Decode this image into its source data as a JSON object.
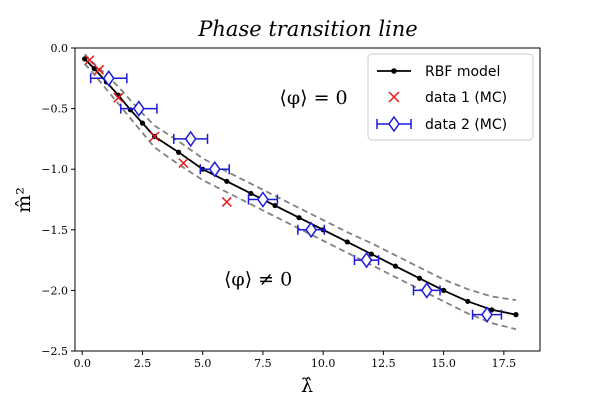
{
  "chart_data": {
    "type": "line",
    "title": "Phase transition line",
    "xlabel": "λ̂",
    "ylabel": "m̂²",
    "xlim": [
      -0.3,
      19.0
    ],
    "ylim": [
      -2.5,
      0.0
    ],
    "xticks": [
      0.0,
      2.5,
      5.0,
      7.5,
      10.0,
      12.5,
      15.0,
      17.5
    ],
    "xtick_labels": [
      "0.0",
      "2.5",
      "5.0",
      "7.5",
      "10.0",
      "12.5",
      "15.0",
      "17.5"
    ],
    "yticks": [
      0.0,
      -0.5,
      -1.0,
      -1.5,
      -2.0,
      -2.5
    ],
    "ytick_labels": [
      "0.0",
      "−0.5",
      "−1.0",
      "−1.5",
      "−2.0",
      "−2.5"
    ],
    "grid": false,
    "legend_position": "top-right",
    "annotations": [
      {
        "text": "⟨φ⟩ = 0",
        "x": 9.6,
        "y": -0.46
      },
      {
        "text": "⟨φ⟩ ≠ 0",
        "x": 7.3,
        "y": -1.96
      }
    ],
    "series": [
      {
        "name": "RBF model",
        "kind": "line-marker",
        "color": "#000000",
        "x": [
          0.1,
          0.5,
          1.0,
          1.5,
          2.0,
          2.5,
          3.0,
          4.0,
          5.0,
          6.0,
          7.0,
          8.0,
          9.0,
          10.0,
          11.0,
          12.0,
          13.0,
          14.0,
          15.0,
          16.0,
          17.0,
          18.0
        ],
        "y": [
          -0.09,
          -0.17,
          -0.28,
          -0.39,
          -0.51,
          -0.62,
          -0.73,
          -0.86,
          -1.0,
          -1.1,
          -1.2,
          -1.3,
          -1.4,
          -1.5,
          -1.6,
          -1.7,
          -1.8,
          -1.9,
          -2.0,
          -2.09,
          -2.16,
          -2.2
        ]
      },
      {
        "name": "upper band",
        "kind": "dashed",
        "color": "#808080",
        "x": [
          0.1,
          0.5,
          1.0,
          1.5,
          2.0,
          2.5,
          3.0,
          4.0,
          5.0,
          6.0,
          7.0,
          8.0,
          9.0,
          10.0,
          11.0,
          12.0,
          13.0,
          14.0,
          15.0,
          16.0,
          17.0,
          18.0
        ],
        "y": [
          -0.05,
          -0.13,
          -0.22,
          -0.32,
          -0.43,
          -0.54,
          -0.64,
          -0.77,
          -0.91,
          -1.02,
          -1.12,
          -1.22,
          -1.32,
          -1.42,
          -1.52,
          -1.61,
          -1.71,
          -1.81,
          -1.91,
          -1.99,
          -2.05,
          -2.08
        ]
      },
      {
        "name": "lower band",
        "kind": "dashed",
        "color": "#808080",
        "x": [
          0.1,
          0.5,
          1.0,
          1.5,
          2.0,
          2.5,
          3.0,
          4.0,
          5.0,
          6.0,
          7.0,
          8.0,
          9.0,
          10.0,
          11.0,
          12.0,
          13.0,
          14.0,
          15.0,
          16.0,
          17.0,
          18.0
        ],
        "y": [
          -0.13,
          -0.22,
          -0.34,
          -0.46,
          -0.58,
          -0.7,
          -0.82,
          -0.96,
          -1.09,
          -1.19,
          -1.29,
          -1.39,
          -1.49,
          -1.59,
          -1.69,
          -1.79,
          -1.89,
          -1.99,
          -2.09,
          -2.19,
          -2.27,
          -2.32
        ]
      },
      {
        "name": "data 1 (MC)",
        "kind": "x-marker",
        "color": "#e8191d",
        "x": [
          0.3,
          0.7,
          1.5,
          3.0,
          4.2,
          6.0
        ],
        "y": [
          -0.1,
          -0.18,
          -0.41,
          -0.73,
          -0.95,
          -1.27
        ]
      },
      {
        "name": "data 2 (MC)",
        "kind": "diamond-errorbar",
        "color": "#1a1adb",
        "x": [
          1.1,
          2.35,
          4.5,
          5.5,
          7.5,
          9.5,
          11.8,
          14.3,
          16.8
        ],
        "y": [
          -0.25,
          -0.5,
          -0.75,
          -1.0,
          -1.25,
          -1.5,
          -1.75,
          -2.0,
          -2.2
        ],
        "xerr": [
          0.75,
          0.75,
          0.7,
          0.6,
          0.6,
          0.55,
          0.5,
          0.55,
          0.6
        ]
      }
    ],
    "legend": [
      {
        "label": "RBF model",
        "series": 0
      },
      {
        "label": "data 1 (MC)",
        "series": 3
      },
      {
        "label": "data 2 (MC)",
        "series": 4
      }
    ]
  }
}
